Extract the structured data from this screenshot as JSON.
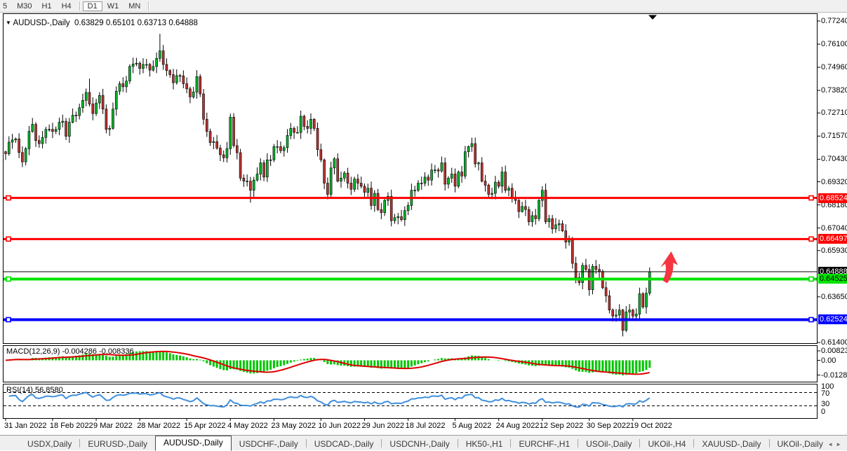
{
  "toolbar": {
    "timeframes": [
      {
        "label": "5",
        "active": false
      },
      {
        "label": "M30",
        "active": false
      },
      {
        "label": "H1",
        "active": false
      },
      {
        "label": "H4",
        "active": false
      },
      {
        "label": "D1",
        "active": true
      },
      {
        "label": "W1",
        "active": false
      },
      {
        "label": "MN",
        "active": false
      }
    ]
  },
  "chart": {
    "symbol": "AUDUSD-,Daily",
    "open": "0.63829",
    "high": "0.65101",
    "low": "0.63713",
    "close": "0.64888",
    "dropdown_icon": "▼"
  },
  "indicators": {
    "macd": {
      "name": "MACD(12,26,9)",
      "value": "-0.004286",
      "signal_value": "-0.008336"
    },
    "rsi": {
      "name": "RSI(14)",
      "value": "56.8580"
    }
  },
  "chart_data": {
    "type": "candlestick",
    "symbol": "AUDUSD",
    "timeframe": "Daily",
    "last_ohlc": {
      "open": 0.63829,
      "high": 0.65101,
      "low": 0.63713,
      "close": 0.64888
    },
    "price_axis_labels": [
      {
        "label": "0.77240",
        "price": 0.7724
      },
      {
        "label": "0.76100",
        "price": 0.761
      },
      {
        "label": "0.74960",
        "price": 0.7496
      },
      {
        "label": "0.73820",
        "price": 0.7382
      },
      {
        "label": "0.72710",
        "price": 0.7271
      },
      {
        "label": "0.71570",
        "price": 0.7157
      },
      {
        "label": "0.70430",
        "price": 0.7043
      },
      {
        "label": "0.69320",
        "price": 0.6932
      },
      {
        "label": "0.68180",
        "price": 0.6818
      },
      {
        "label": "0.67040",
        "price": 0.6704
      },
      {
        "label": "0.65930",
        "price": 0.6593
      },
      {
        "label": "0.63650",
        "price": 0.6365
      },
      {
        "label": "0.61400",
        "price": 0.614
      }
    ],
    "hlines": [
      {
        "label": "0.68524",
        "price": 0.68524,
        "color": "#ff0000",
        "width": 3,
        "text_color": "#ffffff",
        "handles": true
      },
      {
        "label": "0.66497",
        "price": 0.66497,
        "color": "#ff0000",
        "width": 3,
        "text_color": "#ffffff",
        "handles": true
      },
      {
        "label": "0.64888",
        "price": 0.64888,
        "color": "#000000",
        "width": 1,
        "text_color": "#ffffff",
        "handles": false
      },
      {
        "label": "0.64525",
        "price": 0.64525,
        "color": "#00e400",
        "width": 4,
        "text_color": "#000000",
        "handles": true
      },
      {
        "label": "0.62524",
        "price": 0.62524,
        "color": "#0000ff",
        "width": 4,
        "text_color": "#ffffff",
        "handles": true
      }
    ],
    "date_ticks": [
      {
        "label": "31 Jan 2022",
        "i": 0
      },
      {
        "label": "18 Feb 2022",
        "i": 14
      },
      {
        "label": "9 Mar 2022",
        "i": 27
      },
      {
        "label": "28 Mar 2022",
        "i": 40
      },
      {
        "label": "15 Apr 2022",
        "i": 54
      },
      {
        "label": "4 May 2022",
        "i": 67
      },
      {
        "label": "23 May 2022",
        "i": 80
      },
      {
        "label": "10 Jun 2022",
        "i": 94
      },
      {
        "label": "29 Jun 2022",
        "i": 107
      },
      {
        "label": "18 Jul 2022",
        "i": 120
      },
      {
        "label": "5 Aug 2022",
        "i": 134
      },
      {
        "label": "24 Aug 2022",
        "i": 147
      },
      {
        "label": "12 Sep 2022",
        "i": 160
      },
      {
        "label": "30 Sep 2022",
        "i": 174
      },
      {
        "label": "19 Oct 2022",
        "i": 187
      }
    ],
    "closes": [
      0.707,
      0.7127,
      0.7138,
      0.7143,
      0.7076,
      0.703,
      0.7095,
      0.718,
      0.7215,
      0.7135,
      0.712,
      0.715,
      0.719,
      0.719,
      0.718,
      0.719,
      0.7225,
      0.723,
      0.7156,
      0.7225,
      0.726,
      0.7258,
      0.7297,
      0.7333,
      0.7372,
      0.7315,
      0.7268,
      0.732,
      0.7357,
      0.729,
      0.719,
      0.7195,
      0.729,
      0.7378,
      0.7415,
      0.74,
      0.7428,
      0.75,
      0.7512,
      0.7516,
      0.749,
      0.751,
      0.751,
      0.7482,
      0.75,
      0.754,
      0.7577,
      0.751,
      0.748,
      0.746,
      0.742,
      0.7455,
      0.7454,
      0.7415,
      0.739,
      0.735,
      0.7374,
      0.745,
      0.7365,
      0.724,
      0.718,
      0.7125,
      0.713,
      0.7098,
      0.7065,
      0.705,
      0.7095,
      0.725,
      0.711,
      0.7075,
      0.695,
      0.6935,
      0.6935,
      0.689,
      0.694,
      0.697,
      0.7025,
      0.6955,
      0.704,
      0.704,
      0.7105,
      0.7105,
      0.7085,
      0.71,
      0.716,
      0.7195,
      0.7175,
      0.7175,
      0.7255,
      0.7205,
      0.7195,
      0.724,
      0.7195,
      0.709,
      0.704,
      0.6925,
      0.687,
      0.7,
      0.7045,
      0.6935,
      0.695,
      0.6975,
      0.6925,
      0.6895,
      0.6945,
      0.6925,
      0.691,
      0.688,
      0.69,
      0.6815,
      0.6875,
      0.6795,
      0.678,
      0.684,
      0.686,
      0.674,
      0.6755,
      0.676,
      0.6745,
      0.679,
      0.6815,
      0.689,
      0.689,
      0.6925,
      0.6925,
      0.6955,
      0.694,
      0.699,
      0.699,
      0.6985,
      0.7025,
      0.692,
      0.695,
      0.697,
      0.691,
      0.698,
      0.696,
      0.708,
      0.7105,
      0.712,
      0.702,
      0.7025,
      0.6935,
      0.6915,
      0.687,
      0.6875,
      0.693,
      0.691,
      0.698,
      0.689,
      0.69,
      0.6855,
      0.684,
      0.6785,
      0.681,
      0.6795,
      0.6735,
      0.6765,
      0.675,
      0.684,
      0.689,
      0.6735,
      0.675,
      0.67,
      0.672,
      0.6725,
      0.669,
      0.6635,
      0.6645,
      0.653,
      0.646,
      0.6435,
      0.652,
      0.65,
      0.64,
      0.6515,
      0.65,
      0.649,
      0.641,
      0.637,
      0.63,
      0.627,
      0.6275,
      0.63,
      0.62,
      0.629,
      0.63,
      0.627,
      0.628,
      0.638,
      0.6315,
      0.6383,
      0.64888
    ],
    "wick_overrides": {
      "25": {
        "h": 0.744
      },
      "46": {
        "h": 0.7661
      },
      "73": {
        "l": 0.6829
      },
      "184": {
        "l": 0.617
      },
      "192": {
        "o": 0.63829,
        "h": 0.65101,
        "l": 0.63713
      }
    },
    "macd_axis": [
      {
        "label": "0.00823",
        "v": 0.00823
      },
      {
        "label": "0.00",
        "v": 0
      },
      {
        "label": "-0.012827",
        "v": -0.012827
      }
    ],
    "rsi_axis": [
      {
        "label": "100",
        "v": 100
      },
      {
        "label": "70",
        "v": 70
      },
      {
        "label": "30",
        "v": 30
      },
      {
        "label": "0",
        "v": 0
      }
    ],
    "rsi_levels": [
      70,
      30
    ],
    "colors": {
      "bull": "#00b32a",
      "bear": "#b73430",
      "wick": "#000000",
      "macd_hist": "#00c500",
      "macd_signal": "#dd0000",
      "rsi_line": "#3e8ede",
      "arrow": "#f5353f"
    }
  },
  "tabs": {
    "items": [
      {
        "label": "USDX,Daily",
        "active": false
      },
      {
        "label": "EURUSD-,Daily",
        "active": false
      },
      {
        "label": "AUDUSD-,Daily",
        "active": true
      },
      {
        "label": "USDCHF-,Daily",
        "active": false
      },
      {
        "label": "USDCAD-,Daily",
        "active": false
      },
      {
        "label": "USDCNH-,Daily",
        "active": false
      },
      {
        "label": "HK50-,H1",
        "active": false
      },
      {
        "label": "EURCHF-,H1",
        "active": false
      },
      {
        "label": "USOil-,Daily",
        "active": false
      },
      {
        "label": "UKOil-,H4",
        "active": false
      },
      {
        "label": "XAUUSD-,Daily",
        "active": false
      },
      {
        "label": "UKOil-,Daily",
        "active": false
      }
    ],
    "scroll_left_icon": "◄",
    "scroll_right_icon": "►"
  }
}
